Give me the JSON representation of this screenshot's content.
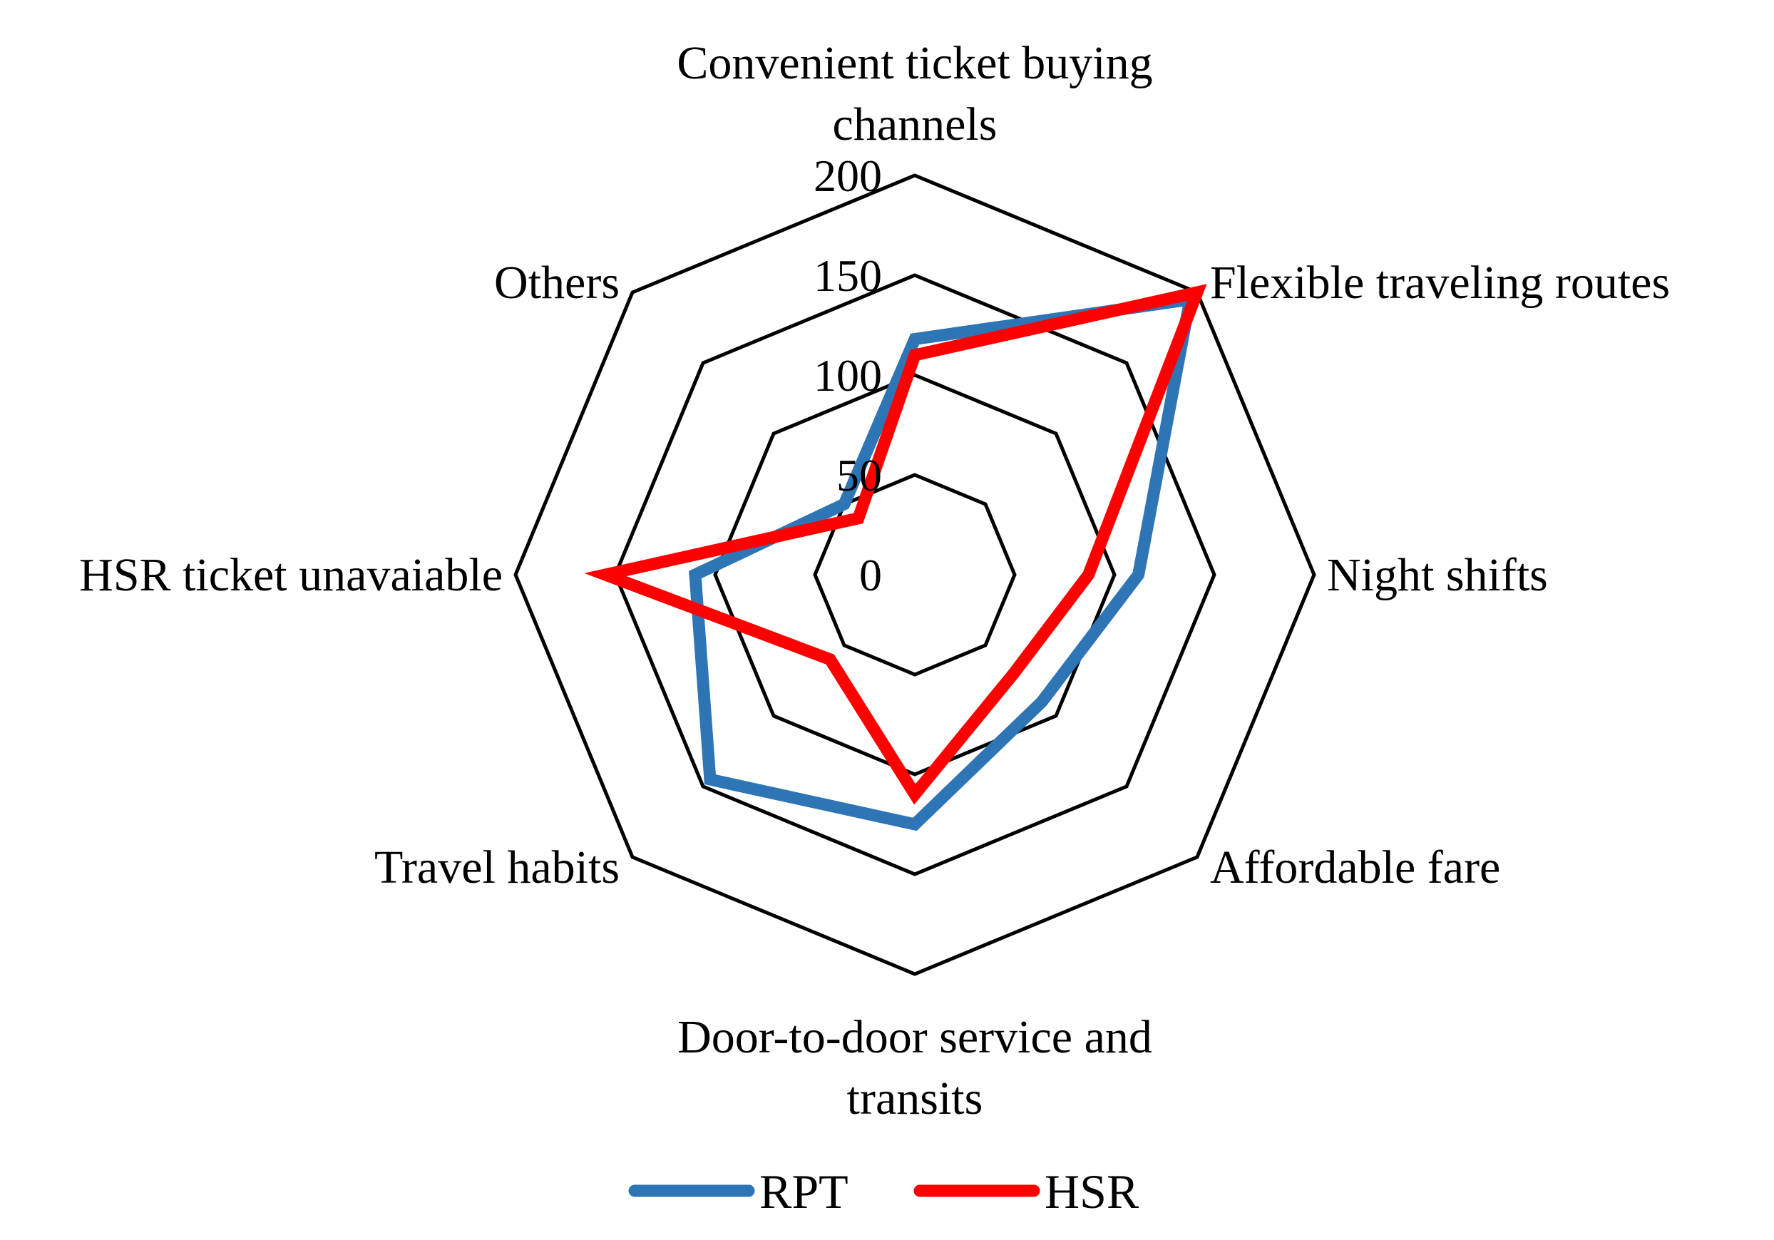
{
  "chart_data": {
    "type": "radar",
    "categories": [
      "Convenient ticket buying channels",
      "Flexible traveling routes",
      "Night shifts",
      "Affordable fare",
      "Door-to-door service and transits",
      "Travel habits",
      "HSR ticket unavaiable",
      "Others"
    ],
    "category_label_lines": [
      [
        "Convenient ticket buying",
        "channels"
      ],
      [
        "Flexible traveling routes"
      ],
      [
        "Night shifts"
      ],
      [
        "Affordable fare"
      ],
      [
        "Door-to-door service and",
        "transits"
      ],
      [
        "Travel habits"
      ],
      [
        "HSR ticket unavaiable"
      ],
      [
        "Others"
      ]
    ],
    "radial_ticks": [
      0,
      50,
      100,
      150,
      200
    ],
    "radial_range": [
      0,
      200
    ],
    "grid": true,
    "legend_position": "bottom",
    "series": [
      {
        "name": "RPT",
        "color": "#2E75B6",
        "values": [
          118,
          195,
          112,
          90,
          125,
          145,
          110,
          50
        ]
      },
      {
        "name": "HSR",
        "color": "#FF0000",
        "values": [
          110,
          200,
          87,
          70,
          110,
          60,
          155,
          40
        ]
      }
    ]
  }
}
